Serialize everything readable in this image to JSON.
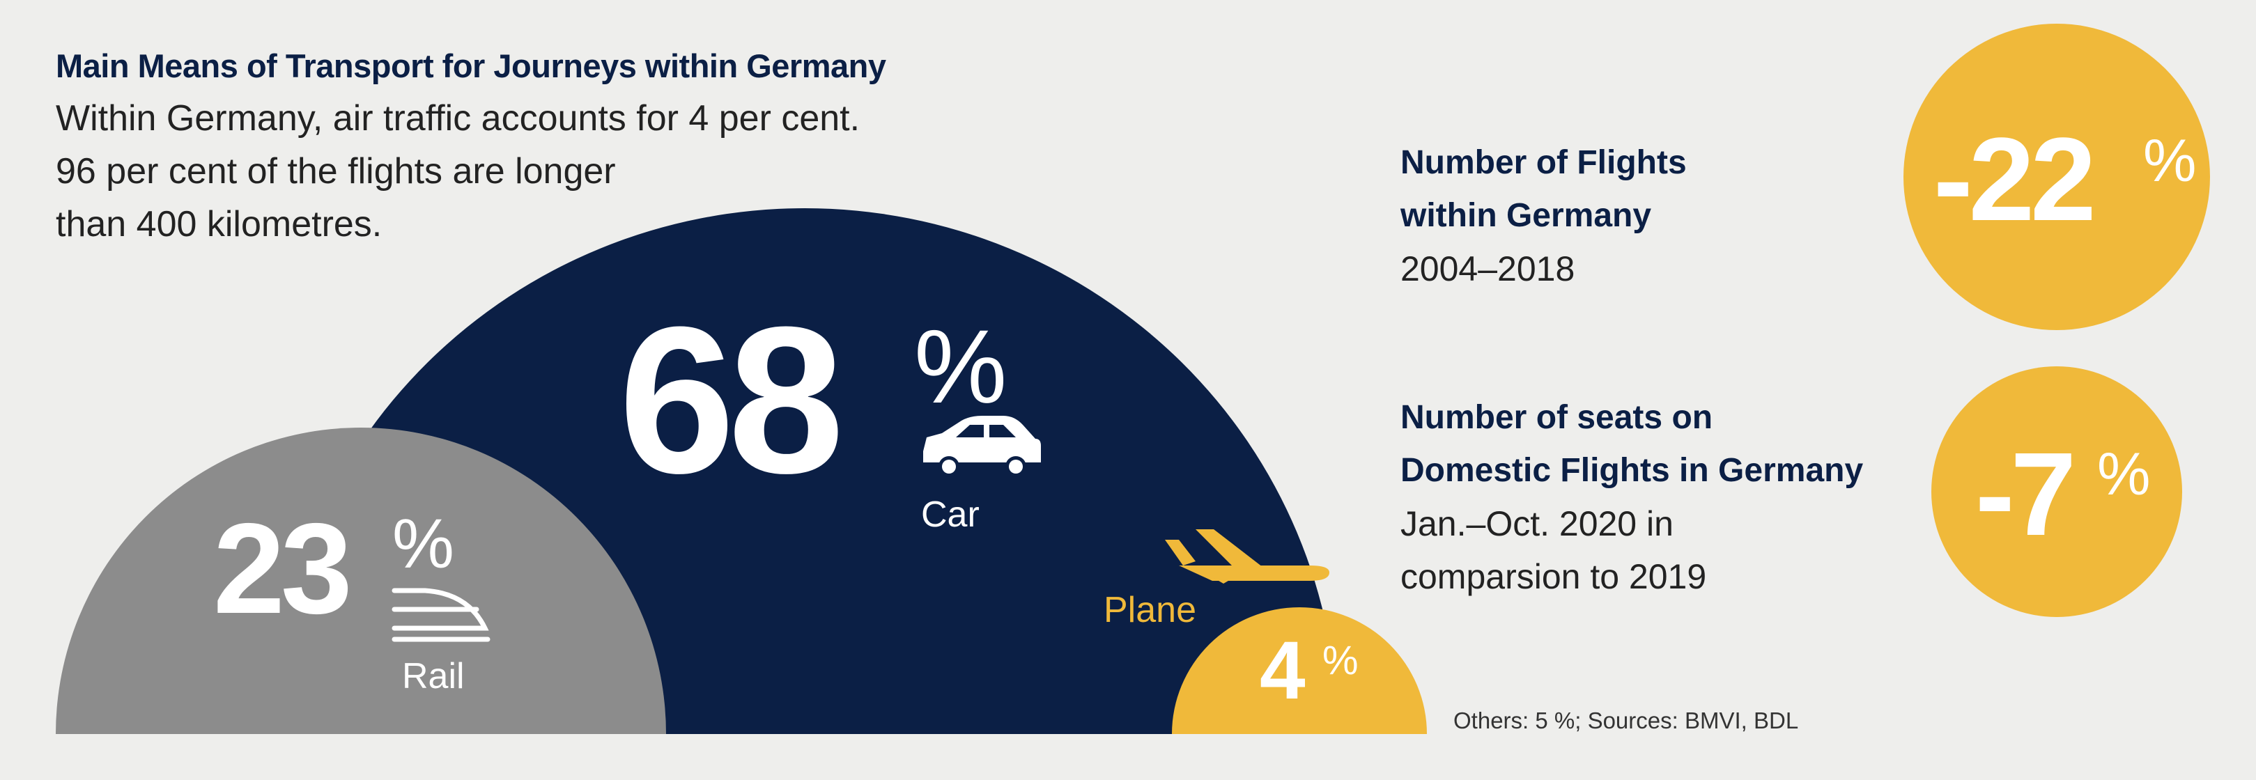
{
  "header": {
    "title": "Main Means of Transport for Journeys within Germany",
    "lines": [
      "Within Germany, air traffic accounts for 4 per cent.",
      "96 per cent of the flights are longer",
      "than 400 kilometres."
    ]
  },
  "chart_data": {
    "type": "area",
    "title": "Main Means of Transport for Journeys within Germany",
    "unit": "%",
    "series": [
      {
        "name": "Rail",
        "value": 23,
        "icon": "train-icon",
        "color": "#8c8c8c"
      },
      {
        "name": "Car",
        "value": 68,
        "icon": "car-icon",
        "color": "#0b1f45"
      },
      {
        "name": "Plane",
        "value": 4,
        "icon": "plane-icon",
        "color": "#f0b93a"
      }
    ]
  },
  "stats": [
    {
      "title_lines": [
        "Number of Flights",
        "within Germany"
      ],
      "sub_lines": [
        "2004–2018"
      ],
      "value": "-22",
      "unit": "%"
    },
    {
      "title_lines": [
        "Number of seats on",
        "Domestic Flights in Germany"
      ],
      "sub_lines": [
        "Jan.–Oct. 2020 in",
        "comparsion to 2019"
      ],
      "value": "-7",
      "unit": "%"
    }
  ],
  "footnote": "Others: 5 %; Sources: BMVI, BDL",
  "colors": {
    "background": "#eeeeec",
    "navy": "#0b1f45",
    "grey": "#8c8c8c",
    "yellow": "#f0b93a",
    "text": "#222222"
  }
}
